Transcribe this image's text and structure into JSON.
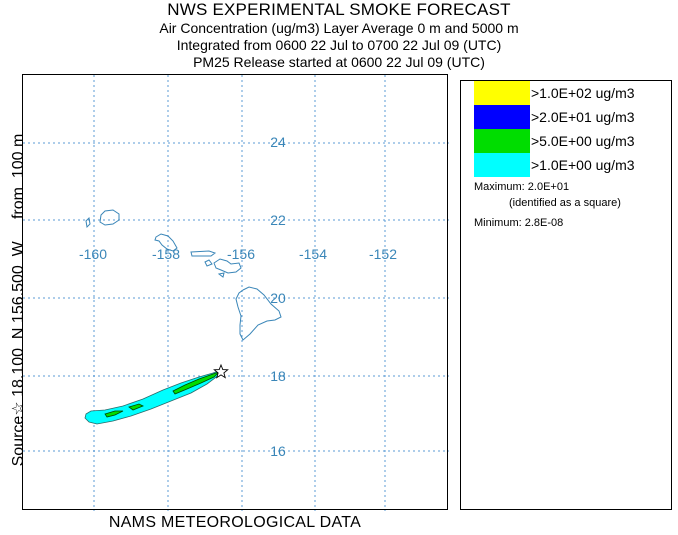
{
  "header": {
    "title": "NWS EXPERIMENTAL SMOKE FORECAST",
    "line1": "Air Concentration (ug/m3) Layer Average    0 m and  5000 m",
    "line2": "Integrated from 0600 22 Jul to 0700 22 Jul 09 (UTC)",
    "line3": "PM25 Release started at 0600 22 Jul 09 (UTC)"
  },
  "side_label": "Source☆ 18.100  N 156.500  W     from  100 m",
  "footer": "NAMS METEOROLOGICAL DATA",
  "map": {
    "longitude_labels": [
      "-160",
      "-158",
      "-156",
      "-154",
      "-152"
    ],
    "latitude_labels": [
      "24",
      "22",
      "20",
      "18",
      "16"
    ],
    "grid_color": "#5b9bd5",
    "coast_color": "#3a86b8",
    "source_marker": "star-icon"
  },
  "legend": {
    "items": [
      {
        "label": ">1.0E+02 ug/m3",
        "color": "#ffff00"
      },
      {
        "label": ">2.0E+01 ug/m3",
        "color": "#0000ff"
      },
      {
        "label": ">5.0E+00 ug/m3",
        "color": "#00dd00"
      },
      {
        "label": ">1.0E+00 ug/m3",
        "color": "#00ffff"
      }
    ],
    "maximum": "Maximum: 2.0E+01",
    "maximum_note": "(identified as a square)",
    "minimum": "Minimum: 2.8E-08"
  }
}
